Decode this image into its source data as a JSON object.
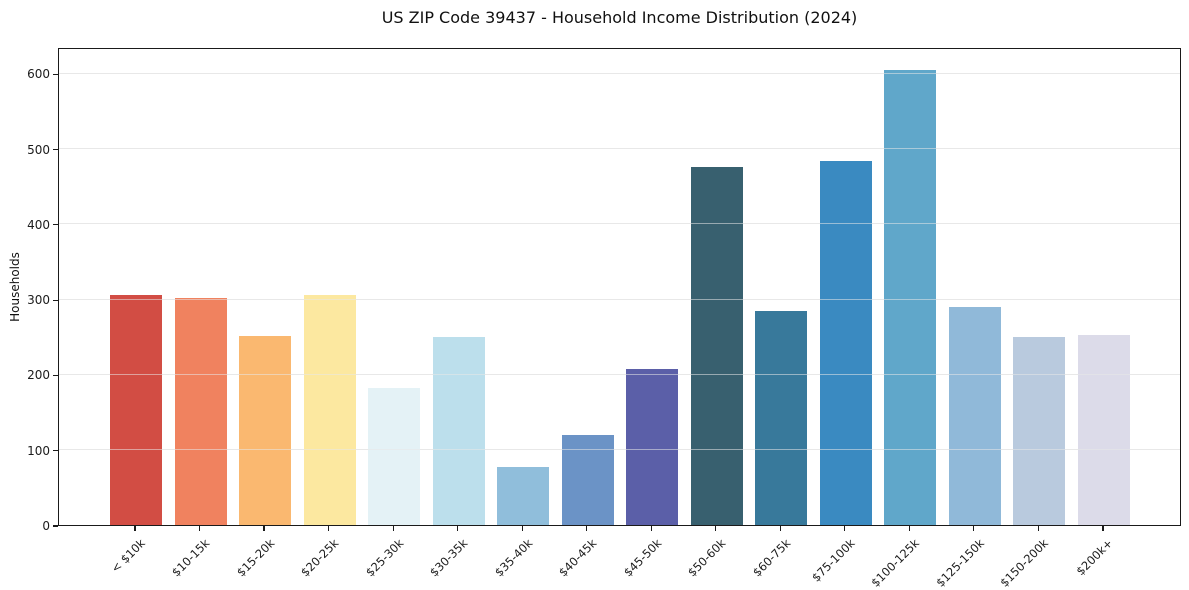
{
  "header": {
    "title": "US ZIP Code 39437 - Household Income Distribution (2024)"
  },
  "chart_data": {
    "type": "bar",
    "title": "US ZIP Code 39437 - Household Income Distribution (2024)",
    "xlabel": "",
    "ylabel": "Households",
    "categories": [
      "< $10k",
      "$10-15k",
      "$15-20k",
      "$20-25k",
      "$25-30k",
      "$30-35k",
      "$35-40k",
      "$40-45k",
      "$45-50k",
      "$50-60k",
      "$60-75k",
      "$75-100k",
      "$100-125k",
      "$125-150k",
      "$150-200k",
      "$200k+"
    ],
    "values": [
      305,
      301,
      251,
      306,
      182,
      250,
      77,
      120,
      207,
      475,
      284,
      483,
      605,
      289,
      250,
      253
    ],
    "bar_colors": [
      "#d24d44",
      "#f0825f",
      "#fab870",
      "#fce8a0",
      "#e4f2f6",
      "#bcdfec",
      "#90bedb",
      "#6b93c6",
      "#5b5fa8",
      "#38606f",
      "#38799b",
      "#3a8ac1",
      "#60a7ca",
      "#90b9d9",
      "#b9cade",
      "#dcdbe9"
    ],
    "ylim": [
      0,
      635
    ],
    "yticks": [
      0,
      100,
      200,
      300,
      400,
      500,
      600
    ],
    "grid": "horizontal",
    "legend": "none",
    "xtick_rotation_deg": 45
  },
  "style_colors": {
    "background": "#ffffff",
    "gridline": "#e9e9e9",
    "spine": "#1a1a1a",
    "text": "#111111"
  }
}
